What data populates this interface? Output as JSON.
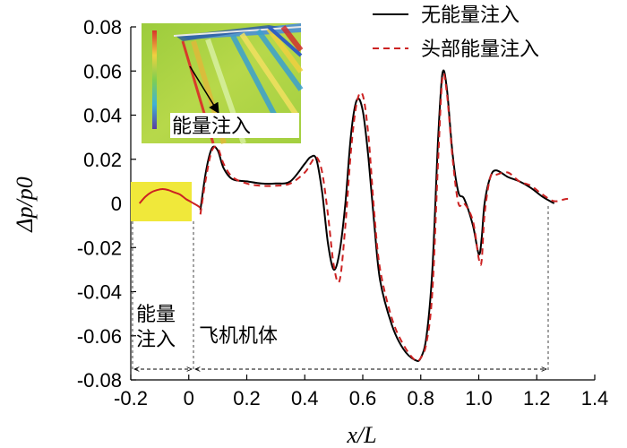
{
  "chart_data": {
    "type": "line",
    "title": "",
    "xlabel": "x/L",
    "ylabel": "Δp/p0",
    "xlim": [
      -0.2,
      1.4
    ],
    "ylim": [
      -0.08,
      0.08
    ],
    "xticks": [
      "-0.2",
      "0",
      "0.2",
      "0.4",
      "0.6",
      "0.8",
      "1.0",
      "1.2",
      "1.4"
    ],
    "yticks": [
      "0.08",
      "0.06",
      "0.04",
      "0.02",
      "0",
      "-0.02",
      "-0.04",
      "-0.06",
      "-0.08"
    ],
    "legend": {
      "position": "top-right"
    },
    "series": [
      {
        "name": "无能量注入",
        "color": "#000000",
        "style": "solid",
        "x": [
          0.04,
          0.06,
          0.08,
          0.1,
          0.12,
          0.15,
          0.2,
          0.25,
          0.3,
          0.35,
          0.4,
          0.42,
          0.44,
          0.46,
          0.48,
          0.5,
          0.52,
          0.54,
          0.56,
          0.58,
          0.6,
          0.62,
          0.64,
          0.66,
          0.7,
          0.74,
          0.78,
          0.8,
          0.82,
          0.84,
          0.86,
          0.875,
          0.89,
          0.91,
          0.93,
          0.95,
          0.98,
          1.0,
          1.01,
          1.02,
          1.04,
          1.06,
          1.1,
          1.14,
          1.18,
          1.22,
          1.26
        ],
        "y": [
          -0.003,
          0.015,
          0.025,
          0.024,
          0.016,
          0.011,
          0.01,
          0.009,
          0.009,
          0.01,
          0.018,
          0.021,
          0.02,
          0.005,
          -0.018,
          -0.03,
          -0.022,
          0.0,
          0.032,
          0.047,
          0.042,
          0.02,
          -0.01,
          -0.035,
          -0.055,
          -0.066,
          -0.071,
          -0.07,
          -0.06,
          -0.03,
          0.03,
          0.059,
          0.052,
          0.022,
          0.005,
          0.002,
          -0.01,
          -0.023,
          -0.016,
          0.0,
          0.012,
          0.015,
          0.012,
          0.01,
          0.007,
          0.003,
          0.0
        ]
      },
      {
        "name": "头部能量注入",
        "color": "#cc2222",
        "style": "dashed",
        "x": [
          0.04,
          0.06,
          0.08,
          0.1,
          0.12,
          0.15,
          0.2,
          0.25,
          0.3,
          0.35,
          0.4,
          0.42,
          0.44,
          0.46,
          0.48,
          0.5,
          0.52,
          0.54,
          0.56,
          0.58,
          0.6,
          0.62,
          0.64,
          0.66,
          0.7,
          0.74,
          0.78,
          0.8,
          0.82,
          0.84,
          0.86,
          0.875,
          0.89,
          0.91,
          0.93,
          0.95,
          0.98,
          1.0,
          1.01,
          1.02,
          1.04,
          1.06,
          1.1,
          1.14,
          1.18,
          1.22,
          1.26,
          1.3,
          1.32
        ],
        "y": [
          -0.005,
          0.012,
          0.024,
          0.025,
          0.018,
          0.012,
          0.009,
          0.008,
          0.008,
          0.009,
          0.014,
          0.018,
          0.021,
          0.014,
          -0.005,
          -0.028,
          -0.035,
          -0.01,
          0.025,
          0.046,
          0.049,
          0.03,
          -0.005,
          -0.03,
          -0.052,
          -0.064,
          -0.071,
          -0.07,
          -0.063,
          -0.04,
          0.02,
          0.057,
          0.05,
          0.02,
          0.0,
          0.0,
          -0.008,
          -0.025,
          -0.026,
          -0.005,
          0.012,
          0.013,
          0.014,
          0.01,
          0.008,
          0.004,
          0.001,
          0.002,
          0.002
        ]
      },
      {
        "name": "",
        "color": "#cc2222",
        "style": "solid",
        "x": [
          -0.17,
          -0.15,
          -0.13,
          -0.11,
          -0.09,
          -0.07,
          -0.05,
          -0.03,
          -0.01,
          0.01,
          0.03,
          0.04
        ],
        "y": [
          0.0,
          0.003,
          0.005,
          0.006,
          0.0065,
          0.006,
          0.005,
          0.004,
          0.002,
          0.0005,
          -0.001,
          -0.002
        ]
      }
    ],
    "annotations": {
      "energy_region_label_1": "能量",
      "energy_region_label_2": "注入",
      "body_label": "飞机机体",
      "inset_label": "能量注入"
    }
  }
}
